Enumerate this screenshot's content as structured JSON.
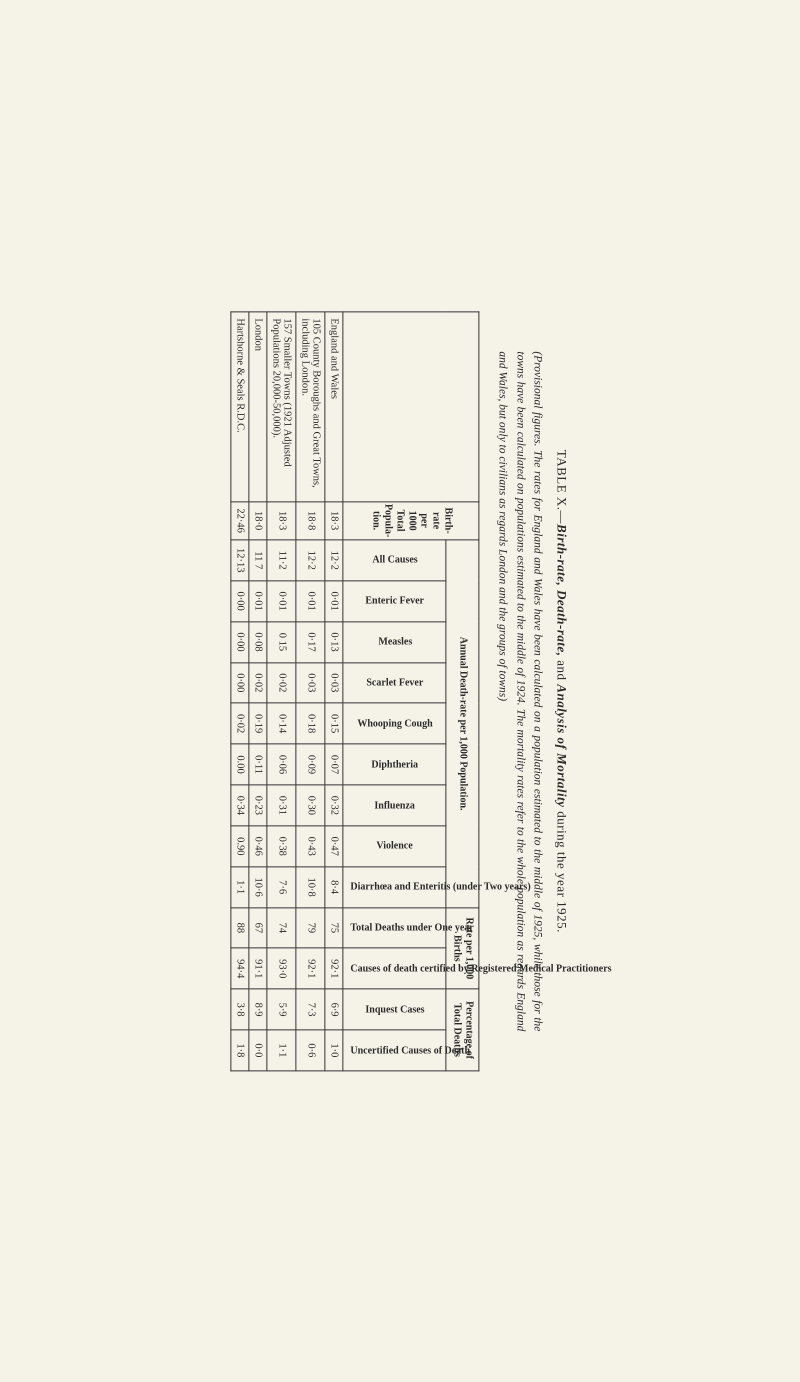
{
  "title_prefix": "TABLE X.—",
  "title_main": "Birth-rate, Death-rate,",
  "title_mid": " and ",
  "title_main2": "Analysis of Mortality",
  "title_suffix": " during the year 1925.",
  "subtitle": "(Provisional figures. The rates for England and Wales have been calculated on a population estimated to the middle of 1925, while those for the towns have been calculated on populations estimated to the middle of 1924. The mortality rates refer to the whole population as regards England and Wales, but only to civilians as regards London and the groups of towns)",
  "header": {
    "birth_rate": "Birth-rate per 1000 Total Popula-tion.",
    "annual_death": "Annual Death-rate per 1,000 Population.",
    "rate_per_births": "Rate per 1,000 Births",
    "pct_total_deaths": "Percentage of Total Deaths",
    "all_causes": "All Causes",
    "enteric": "Enteric Fever",
    "measles": "Measles",
    "scarlet": "Scarlet Fever",
    "whooping": "Whooping Cough",
    "diphtheria": "Diphtheria",
    "influenza": "Influenza",
    "violence": "Violence",
    "diarrhoea": "Diarrhœa and Enteritis (under Two years)",
    "total_deaths": "Total Deaths under One year",
    "causes_certified": "Causes of death certified by Registered Medical Practitioners",
    "inquest": "Inquest Cases",
    "uncertified": "Uncertified Causes of Death"
  },
  "rows": [
    {
      "label": "England and Wales",
      "birth": "18·3",
      "all": "12·2",
      "enteric": "0·01",
      "measles": "0·13",
      "scarlet": "0·03",
      "whoop": "0·15",
      "diph": "0·07",
      "flu": "0·32",
      "viol": "0·47",
      "diar": "8·4",
      "tdo": "75",
      "cert": "92·1",
      "inq": "6·9",
      "unc": "1·0"
    },
    {
      "label": "105 County Boroughs and Great Towns, including London.",
      "birth": "18·8",
      "all": "12·2",
      "enteric": "0·01",
      "measles": "0·17",
      "scarlet": "0·03",
      "whoop": "0·18",
      "diph": "0·09",
      "flu": "0·30",
      "viol": "0·43",
      "diar": "10·8",
      "tdo": "79",
      "cert": "92·1",
      "inq": "7·3",
      "unc": "0·6"
    },
    {
      "label": "157 Smaller Towns (1921 Adjusted Populations 20,000-50,000).",
      "birth": "18·3",
      "all": "11·2",
      "enteric": "0·01",
      "measles": "0 15",
      "scarlet": "0·02",
      "whoop": "0·14",
      "diph": "0·06",
      "flu": "0·31",
      "viol": "0·38",
      "diar": "7·6",
      "tdo": "74",
      "cert": "93·0",
      "inq": "5·9",
      "unc": "1·1"
    },
    {
      "label": "London",
      "birth": "18·0",
      "all": "11 7",
      "enteric": "0·01",
      "measles": "0·08",
      "scarlet": "0·02",
      "whoop": "0·19",
      "diph": "0·11",
      "flu": "0·23",
      "viol": "0·46",
      "diar": "10·6",
      "tdo": "67",
      "cert": "91·1",
      "inq": "8·9",
      "unc": "0·0"
    },
    {
      "label": "Hartshorne & Seals R.D.C.",
      "birth": "22·46",
      "all": "12·13",
      "enteric": "0·00",
      "measles": "0·00",
      "scarlet": "0·00",
      "whoop": "0·02",
      "diph": "0.00",
      "flu": "0·34",
      "viol": "0.90",
      "diar": "1·1",
      "tdo": "88",
      "cert": "94·4",
      "inq": "3·8",
      "unc": "1·8"
    }
  ]
}
